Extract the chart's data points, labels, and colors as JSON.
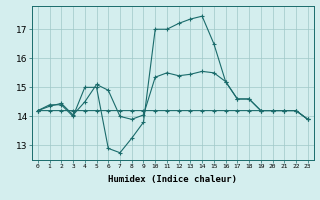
{
  "title": "",
  "xlabel": "Humidex (Indice chaleur)",
  "ylabel": "",
  "background_color": "#d4eeee",
  "grid_color": "#a0c8c8",
  "line_color": "#1a6b6b",
  "x_ticks": [
    0,
    1,
    2,
    3,
    4,
    5,
    6,
    7,
    8,
    9,
    10,
    11,
    12,
    13,
    14,
    15,
    16,
    17,
    18,
    19,
    20,
    21,
    22,
    23
  ],
  "y_ticks": [
    13,
    14,
    15,
    16,
    17
  ],
  "xlim": [
    -0.5,
    23.5
  ],
  "ylim": [
    12.5,
    17.8
  ],
  "series": [
    {
      "x": [
        0,
        1,
        2,
        3,
        4,
        5,
        6,
        7,
        8,
        9,
        10,
        11,
        12,
        13,
        14,
        15,
        16,
        17,
        18,
        19,
        20,
        21,
        22,
        23
      ],
      "y": [
        14.2,
        14.4,
        14.4,
        14.0,
        15.0,
        15.0,
        12.9,
        12.75,
        13.25,
        13.8,
        17.0,
        17.0,
        17.2,
        17.35,
        17.45,
        16.5,
        15.2,
        14.6,
        14.6,
        14.2,
        14.2,
        14.2,
        14.2,
        13.9
      ]
    },
    {
      "x": [
        0,
        1,
        2,
        3,
        4,
        5,
        6,
        7,
        8,
        9,
        10,
        11,
        12,
        13,
        14,
        15,
        16,
        17,
        18,
        19,
        20,
        21,
        22,
        23
      ],
      "y": [
        14.2,
        14.2,
        14.2,
        14.2,
        14.2,
        14.2,
        14.2,
        14.2,
        14.2,
        14.2,
        14.2,
        14.2,
        14.2,
        14.2,
        14.2,
        14.2,
        14.2,
        14.2,
        14.2,
        14.2,
        14.2,
        14.2,
        14.2,
        13.9
      ]
    },
    {
      "x": [
        0,
        1,
        2,
        3,
        4,
        5,
        6,
        7,
        8,
        9,
        10,
        11,
        12,
        13,
        14,
        15,
        16,
        17,
        18,
        19,
        20,
        21,
        22,
        23
      ],
      "y": [
        14.2,
        14.35,
        14.45,
        14.05,
        14.5,
        15.1,
        14.9,
        14.0,
        13.9,
        14.05,
        15.35,
        15.5,
        15.4,
        15.45,
        15.55,
        15.5,
        15.2,
        14.6,
        14.6,
        14.2,
        14.2,
        14.2,
        14.2,
        13.9
      ]
    }
  ]
}
